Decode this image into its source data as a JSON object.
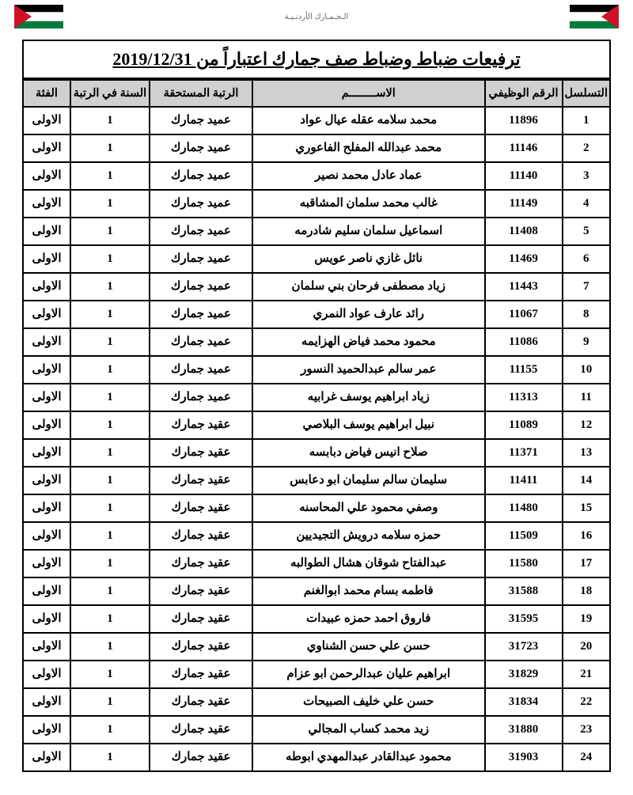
{
  "header_center": "الـجـمـارك الأردنـيـة",
  "title": "ترفيعات ضباط وضباط صف جمارك اعتباراً من 2019/12/31",
  "columns": {
    "seq": "التسلسل",
    "empid": "الرقم الوظيفي",
    "name": "الاســــــــم",
    "rank": "الرتبة المستحقة",
    "year": "السنة في الرتبة",
    "cat": "الفئة"
  },
  "rows": [
    {
      "seq": "1",
      "id": "11896",
      "name": "محمد سلامه عقله عيال عواد",
      "rank": "عميد جمارك",
      "year": "1",
      "cat": "الاولى"
    },
    {
      "seq": "2",
      "id": "11146",
      "name": "محمد عبدالله المفلح الفاعوري",
      "rank": "عميد جمارك",
      "year": "1",
      "cat": "الاولى"
    },
    {
      "seq": "3",
      "id": "11140",
      "name": "عماد عادل محمد نصير",
      "rank": "عميد جمارك",
      "year": "1",
      "cat": "الاولى"
    },
    {
      "seq": "4",
      "id": "11149",
      "name": "غالب محمد سلمان المشاقبه",
      "rank": "عميد جمارك",
      "year": "1",
      "cat": "الاولى"
    },
    {
      "seq": "5",
      "id": "11408",
      "name": "اسماعيل سلمان سليم شادرمه",
      "rank": "عميد جمارك",
      "year": "1",
      "cat": "الاولى"
    },
    {
      "seq": "6",
      "id": "11469",
      "name": "نائل غازي ناصر عويس",
      "rank": "عميد جمارك",
      "year": "1",
      "cat": "الاولى"
    },
    {
      "seq": "7",
      "id": "11443",
      "name": "زياد مصطفى فرحان بني سلمان",
      "rank": "عميد جمارك",
      "year": "1",
      "cat": "الاولى"
    },
    {
      "seq": "8",
      "id": "11067",
      "name": "رائد عارف عواد النمري",
      "rank": "عميد جمارك",
      "year": "1",
      "cat": "الاولى"
    },
    {
      "seq": "9",
      "id": "11086",
      "name": "محمود محمد فياض الهزايمه",
      "rank": "عميد جمارك",
      "year": "1",
      "cat": "الاولى"
    },
    {
      "seq": "10",
      "id": "11155",
      "name": "عمر سالم عبدالحميد النسور",
      "rank": "عميد جمارك",
      "year": "1",
      "cat": "الاولى"
    },
    {
      "seq": "11",
      "id": "11313",
      "name": "زياد ابراهيم يوسف غرابيه",
      "rank": "عميد جمارك",
      "year": "1",
      "cat": "الاولى"
    },
    {
      "seq": "12",
      "id": "11089",
      "name": "نبيل ابراهيم يوسف البلاصي",
      "rank": "عقيد جمارك",
      "year": "1",
      "cat": "الاولى"
    },
    {
      "seq": "13",
      "id": "11371",
      "name": "صلاح انيس فياض دبابسه",
      "rank": "عقيد جمارك",
      "year": "1",
      "cat": "الاولى"
    },
    {
      "seq": "14",
      "id": "11411",
      "name": "سليمان سالم سليمان ابو دعابس",
      "rank": "عقيد جمارك",
      "year": "1",
      "cat": "الاولى"
    },
    {
      "seq": "15",
      "id": "11480",
      "name": "وصفي محمود علي المحاسنه",
      "rank": "عقيد جمارك",
      "year": "1",
      "cat": "الاولى"
    },
    {
      "seq": "16",
      "id": "11509",
      "name": "حمزه سلامه درويش التجيديين",
      "rank": "عقيد جمارك",
      "year": "1",
      "cat": "الاولى"
    },
    {
      "seq": "17",
      "id": "11580",
      "name": "عبدالفتاح شوقان هشال الطوالبه",
      "rank": "عقيد جمارك",
      "year": "1",
      "cat": "الاولى"
    },
    {
      "seq": "18",
      "id": "31588",
      "name": "فاطمه بسام محمد ابوالغنم",
      "rank": "عقيد جمارك",
      "year": "1",
      "cat": "الاولى"
    },
    {
      "seq": "19",
      "id": "31595",
      "name": "فاروق احمد حمزه عبيدات",
      "rank": "عقيد جمارك",
      "year": "1",
      "cat": "الاولى"
    },
    {
      "seq": "20",
      "id": "31723",
      "name": "حسن علي حسن الشناوي",
      "rank": "عقيد جمارك",
      "year": "1",
      "cat": "الاولى"
    },
    {
      "seq": "21",
      "id": "31829",
      "name": "ابراهيم عليان عبدالرحمن ابو عزام",
      "rank": "عقيد جمارك",
      "year": "1",
      "cat": "الاولى"
    },
    {
      "seq": "22",
      "id": "31834",
      "name": "حسن علي خليف الصبيحات",
      "rank": "عقيد جمارك",
      "year": "1",
      "cat": "الاولى"
    },
    {
      "seq": "23",
      "id": "31880",
      "name": "زيد محمد كساب المجالي",
      "rank": "عقيد جمارك",
      "year": "1",
      "cat": "الاولى"
    },
    {
      "seq": "24",
      "id": "31903",
      "name": "محمود عبدالقادر عبدالمهدي ابوطه",
      "rank": "عقيد جمارك",
      "year": "1",
      "cat": "الاولى"
    }
  ]
}
